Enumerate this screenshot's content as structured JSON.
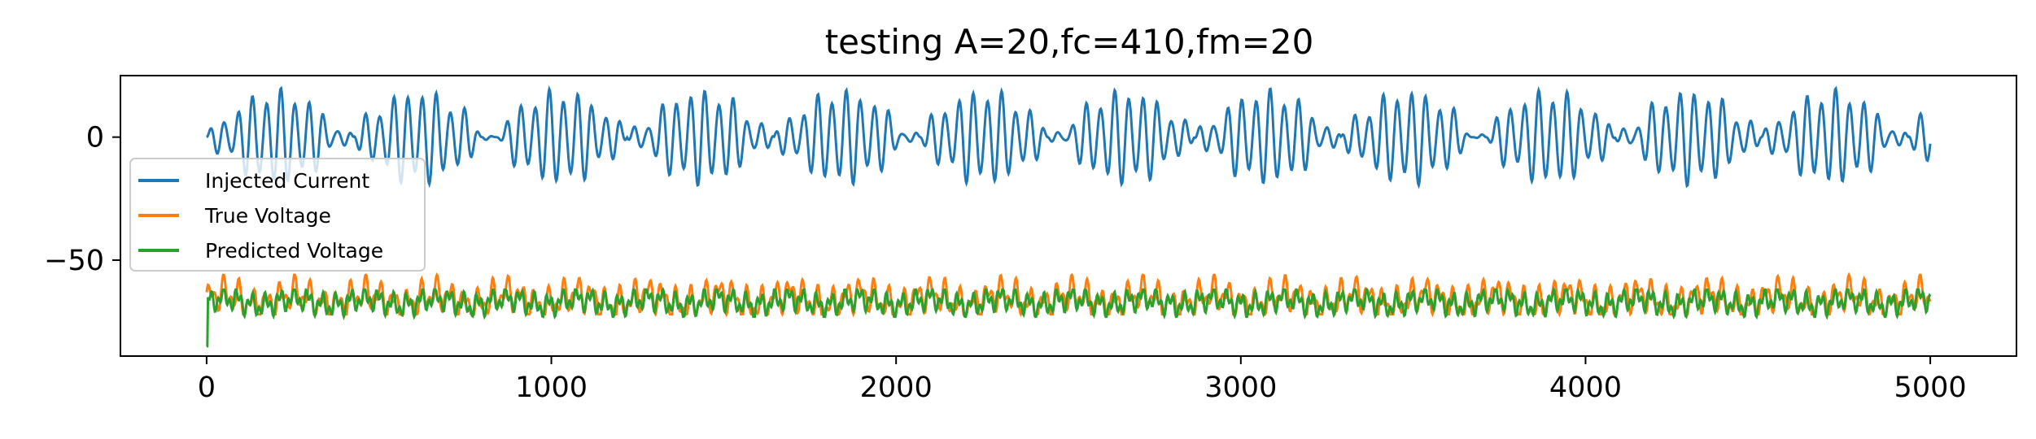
{
  "chart_data": {
    "type": "line",
    "title": "testing A=20,fc=410,fm=20",
    "xlabel": "",
    "ylabel": "",
    "xlim": [
      -250,
      5250
    ],
    "ylim": [
      -89,
      25
    ],
    "x_ticks": [
      0,
      1000,
      2000,
      3000,
      4000,
      5000
    ],
    "x_tick_labels": [
      "0",
      "1000",
      "2000",
      "3000",
      "4000",
      "5000"
    ],
    "y_ticks": [
      0,
      -50
    ],
    "y_tick_labels": [
      "0",
      "−50"
    ],
    "grid": false,
    "legend": {
      "placement": "center-left"
    },
    "x_start": 0,
    "x_end": 5000,
    "series": [
      {
        "name": "Injected Current",
        "color": "#1f77b4",
        "amplitude": 20,
        "carrier_period": 41,
        "modulation_period": 410
      },
      {
        "name": "True Voltage",
        "color": "#ff7f0e",
        "baseline": -66,
        "min": -72,
        "max": -56
      },
      {
        "name": "Predicted Voltage",
        "color": "#2ca02c",
        "baseline": -67,
        "min": -73,
        "max": -62,
        "initial_value": -85
      }
    ]
  }
}
